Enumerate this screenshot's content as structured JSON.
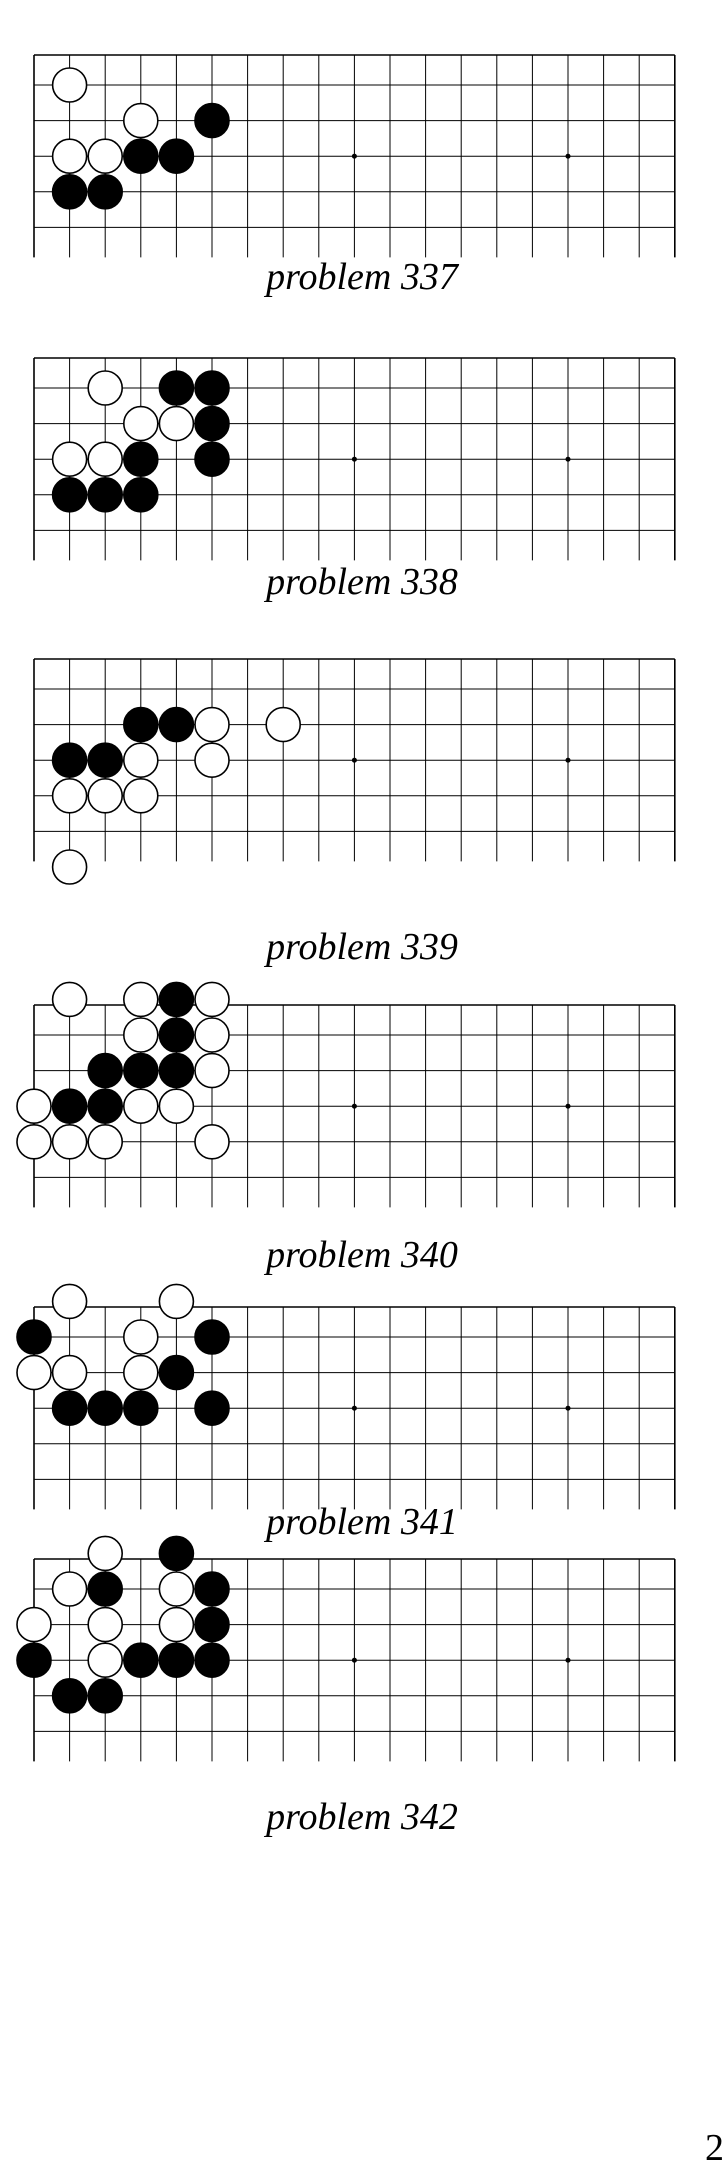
{
  "problems": [
    {
      "caption": "problem 337",
      "white": [
        [
          1,
          1
        ],
        [
          3,
          2
        ],
        [
          1,
          3
        ],
        [
          2,
          3
        ]
      ],
      "black": [
        [
          5,
          2
        ],
        [
          3,
          3
        ],
        [
          4,
          3
        ],
        [
          1,
          4
        ],
        [
          2,
          4
        ]
      ]
    },
    {
      "caption": "problem 338",
      "white": [
        [
          2,
          1
        ],
        [
          3,
          2
        ],
        [
          4,
          2
        ],
        [
          1,
          3
        ],
        [
          2,
          3
        ]
      ],
      "black": [
        [
          4,
          1
        ],
        [
          5,
          1
        ],
        [
          5,
          2
        ],
        [
          3,
          3
        ],
        [
          5,
          3
        ],
        [
          1,
          4
        ],
        [
          2,
          4
        ],
        [
          3,
          4
        ]
      ]
    },
    {
      "caption": "problem 339",
      "white": [
        [
          5,
          2
        ],
        [
          7,
          2
        ],
        [
          3,
          3
        ],
        [
          5,
          3
        ],
        [
          1,
          4
        ],
        [
          2,
          4
        ],
        [
          3,
          4
        ],
        [
          1,
          6
        ]
      ],
      "black": [
        [
          3,
          2
        ],
        [
          4,
          2
        ],
        [
          1,
          3
        ],
        [
          2,
          3
        ]
      ]
    },
    {
      "caption": "problem 340",
      "white": [
        [
          1,
          0
        ],
        [
          3,
          0
        ],
        [
          5,
          0
        ],
        [
          3,
          1
        ],
        [
          5,
          1
        ],
        [
          5,
          2
        ],
        [
          0,
          3
        ],
        [
          3,
          3
        ],
        [
          4,
          3
        ],
        [
          0,
          4
        ],
        [
          1,
          4
        ],
        [
          2,
          4
        ],
        [
          5,
          4
        ]
      ],
      "black": [
        [
          4,
          0
        ],
        [
          4,
          1
        ],
        [
          2,
          2
        ],
        [
          3,
          2
        ],
        [
          4,
          2
        ],
        [
          1,
          3
        ],
        [
          2,
          3
        ]
      ]
    },
    {
      "caption": "problem 341",
      "white": [
        [
          1,
          0
        ],
        [
          4,
          0
        ],
        [
          3,
          1
        ],
        [
          0,
          2
        ],
        [
          1,
          2
        ],
        [
          3,
          2
        ]
      ],
      "black": [
        [
          0,
          1
        ],
        [
          5,
          1
        ],
        [
          4,
          2
        ],
        [
          1,
          3
        ],
        [
          2,
          3
        ],
        [
          3,
          3
        ],
        [
          5,
          3
        ]
      ]
    },
    {
      "caption": "problem 342",
      "white": [
        [
          2,
          0
        ],
        [
          1,
          1
        ],
        [
          4,
          1
        ],
        [
          0,
          2
        ],
        [
          2,
          2
        ],
        [
          4,
          2
        ],
        [
          2,
          3
        ]
      ],
      "black": [
        [
          4,
          0
        ],
        [
          2,
          1
        ],
        [
          5,
          1
        ],
        [
          5,
          2
        ],
        [
          0,
          3
        ],
        [
          3,
          3
        ],
        [
          4,
          3
        ],
        [
          5,
          3
        ],
        [
          1,
          4
        ],
        [
          2,
          4
        ]
      ]
    }
  ],
  "page_number": "2"
}
